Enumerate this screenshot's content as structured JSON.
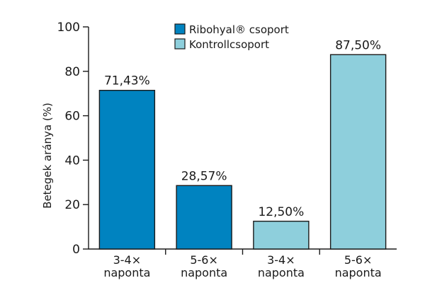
{
  "chart_data": {
    "type": "bar",
    "ylabel": "Betegek aránya (%)",
    "ylim": [
      0,
      100
    ],
    "yticks": [
      "0",
      "20",
      "40",
      "60",
      "80",
      "100"
    ],
    "grid": false,
    "legend_position": "top",
    "colors": {
      "ribohyal": "#0083c0",
      "kontroll": "#8ecfdc",
      "stroke": "#1a1a1a"
    },
    "legend": [
      {
        "key": "ribohyal",
        "label": "Ribohyal® csoport"
      },
      {
        "key": "kontroll",
        "label": "Kontrollcsoport"
      }
    ],
    "bars": [
      {
        "category": [
          "3-4×",
          "naponta"
        ],
        "series": "ribohyal",
        "value": 71.43,
        "label": "71,43%"
      },
      {
        "category": [
          "5-6×",
          "naponta"
        ],
        "series": "ribohyal",
        "value": 28.57,
        "label": "28,57%"
      },
      {
        "category": [
          "3-4×",
          "naponta"
        ],
        "series": "kontroll",
        "value": 12.5,
        "label": "12,50%"
      },
      {
        "category": [
          "5-6×",
          "naponta"
        ],
        "series": "kontroll",
        "value": 87.5,
        "label": "87,50%"
      }
    ]
  }
}
